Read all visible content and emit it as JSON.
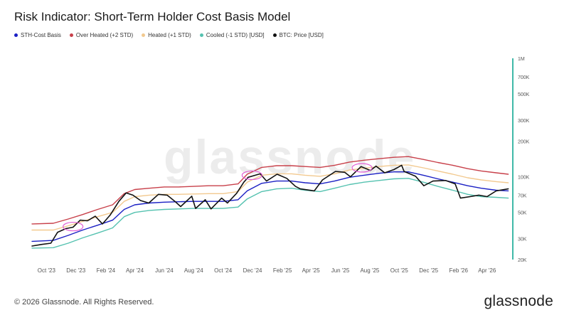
{
  "header": {
    "title": "Risk Indicator: Short-Term Holder Cost Basis Model"
  },
  "legend": [
    {
      "label": "STH-Cost Basis",
      "color": "#1a1fc4"
    },
    {
      "label": "Over Heated (+2 STD)",
      "color": "#c8404a"
    },
    {
      "label": "Heated (+1 STD)",
      "color": "#f2c98f"
    },
    {
      "label": "Cooled (-1 STD) [USD]",
      "color": "#55c2b0"
    },
    {
      "label": "BTC: Price [USD]",
      "color": "#111111"
    }
  ],
  "watermark": "glassnode",
  "footer": {
    "copyright": "© 2026 Glassnode. All Rights Reserved.",
    "brand": "glassnode"
  },
  "chart_data": {
    "type": "line",
    "y_scale": "log",
    "ylim": [
      20000,
      1000000
    ],
    "y_ticks": [
      {
        "value": 20000,
        "label": "20K"
      },
      {
        "value": 30000,
        "label": "30K"
      },
      {
        "value": 50000,
        "label": "50K"
      },
      {
        "value": 70000,
        "label": "70K"
      },
      {
        "value": 100000,
        "label": "100K"
      },
      {
        "value": 200000,
        "label": "200K"
      },
      {
        "value": 300000,
        "label": "300K"
      },
      {
        "value": 500000,
        "label": "500K"
      },
      {
        "value": 700000,
        "label": "700K"
      },
      {
        "value": 1000000,
        "label": "1M"
      }
    ],
    "xlim": [
      "2023-09-01",
      "2026-05-20"
    ],
    "x_ticks": [
      {
        "date": "2023-10-01",
        "label": "Oct '23"
      },
      {
        "date": "2023-12-01",
        "label": "Dec '23"
      },
      {
        "date": "2024-02-01",
        "label": "Feb '24"
      },
      {
        "date": "2024-04-01",
        "label": "Apr '24"
      },
      {
        "date": "2024-06-01",
        "label": "Jun '24"
      },
      {
        "date": "2024-08-01",
        "label": "Aug '24"
      },
      {
        "date": "2024-10-01",
        "label": "Oct '24"
      },
      {
        "date": "2024-12-01",
        "label": "Dec '24"
      },
      {
        "date": "2025-02-01",
        "label": "Feb '25"
      },
      {
        "date": "2025-04-01",
        "label": "Apr '25"
      },
      {
        "date": "2025-06-01",
        "label": "Jun '25"
      },
      {
        "date": "2025-08-01",
        "label": "Aug '25"
      },
      {
        "date": "2025-10-01",
        "label": "Oct '25"
      },
      {
        "date": "2025-12-01",
        "label": "Dec '25"
      },
      {
        "date": "2026-02-01",
        "label": "Feb '26"
      },
      {
        "date": "2026-04-01",
        "label": "Apr '26"
      }
    ],
    "series": [
      {
        "name": "Over Heated (+2 STD)",
        "color": "#c8404a",
        "points": [
          [
            "2023-09-01",
            40000
          ],
          [
            "2023-10-15",
            40500
          ],
          [
            "2023-11-15",
            44000
          ],
          [
            "2023-12-15",
            48000
          ],
          [
            "2024-01-15",
            53000
          ],
          [
            "2024-02-15",
            58000
          ],
          [
            "2024-03-10",
            72000
          ],
          [
            "2024-04-01",
            78000
          ],
          [
            "2024-05-01",
            80000
          ],
          [
            "2024-06-01",
            82000
          ],
          [
            "2024-07-01",
            82000
          ],
          [
            "2024-08-01",
            83000
          ],
          [
            "2024-09-01",
            84000
          ],
          [
            "2024-10-01",
            84000
          ],
          [
            "2024-11-01",
            87000
          ],
          [
            "2024-11-20",
            105000
          ],
          [
            "2024-12-20",
            120000
          ],
          [
            "2025-01-20",
            124000
          ],
          [
            "2025-02-20",
            124000
          ],
          [
            "2025-03-20",
            122000
          ],
          [
            "2025-04-20",
            120000
          ],
          [
            "2025-05-20",
            125000
          ],
          [
            "2025-06-20",
            133000
          ],
          [
            "2025-07-20",
            138000
          ],
          [
            "2025-08-20",
            142000
          ],
          [
            "2025-09-20",
            146000
          ],
          [
            "2025-10-20",
            148000
          ],
          [
            "2025-11-20",
            140000
          ],
          [
            "2025-12-20",
            132000
          ],
          [
            "2026-01-20",
            125000
          ],
          [
            "2026-02-20",
            117000
          ],
          [
            "2026-03-20",
            112000
          ],
          [
            "2026-04-20",
            108000
          ],
          [
            "2026-05-15",
            105000
          ]
        ]
      },
      {
        "name": "Heated (+1 STD)",
        "color": "#f2c98f",
        "points": [
          [
            "2023-09-01",
            35500
          ],
          [
            "2023-10-15",
            35500
          ],
          [
            "2023-11-15",
            38500
          ],
          [
            "2023-12-15",
            42000
          ],
          [
            "2024-01-15",
            46000
          ],
          [
            "2024-02-15",
            50000
          ],
          [
            "2024-03-10",
            62000
          ],
          [
            "2024-04-01",
            68000
          ],
          [
            "2024-05-01",
            70000
          ],
          [
            "2024-06-01",
            71000
          ],
          [
            "2024-07-01",
            71000
          ],
          [
            "2024-08-01",
            71500
          ],
          [
            "2024-09-01",
            72000
          ],
          [
            "2024-10-01",
            72000
          ],
          [
            "2024-11-01",
            75000
          ],
          [
            "2024-11-20",
            90000
          ],
          [
            "2024-12-20",
            103000
          ],
          [
            "2025-01-20",
            106000
          ],
          [
            "2025-02-20",
            106000
          ],
          [
            "2025-03-20",
            103000
          ],
          [
            "2025-04-20",
            101000
          ],
          [
            "2025-05-20",
            106000
          ],
          [
            "2025-06-20",
            114000
          ],
          [
            "2025-07-20",
            118000
          ],
          [
            "2025-08-20",
            122000
          ],
          [
            "2025-09-20",
            125000
          ],
          [
            "2025-10-20",
            126000
          ],
          [
            "2025-11-20",
            119000
          ],
          [
            "2025-12-20",
            112000
          ],
          [
            "2026-01-20",
            105000
          ],
          [
            "2026-02-20",
            98000
          ],
          [
            "2026-03-20",
            94000
          ],
          [
            "2026-04-20",
            91000
          ],
          [
            "2026-05-15",
            89000
          ]
        ]
      },
      {
        "name": "STH-Cost Basis",
        "color": "#1a1fc4",
        "points": [
          [
            "2023-09-01",
            28500
          ],
          [
            "2023-10-15",
            29000
          ],
          [
            "2023-11-15",
            32000
          ],
          [
            "2023-12-15",
            35500
          ],
          [
            "2024-01-15",
            39000
          ],
          [
            "2024-02-15",
            43000
          ],
          [
            "2024-03-10",
            53000
          ],
          [
            "2024-04-01",
            58000
          ],
          [
            "2024-05-01",
            60000
          ],
          [
            "2024-06-01",
            61000
          ],
          [
            "2024-07-01",
            61500
          ],
          [
            "2024-08-01",
            62000
          ],
          [
            "2024-09-01",
            62000
          ],
          [
            "2024-10-01",
            62000
          ],
          [
            "2024-11-01",
            64000
          ],
          [
            "2024-11-20",
            76000
          ],
          [
            "2024-12-20",
            88000
          ],
          [
            "2025-01-20",
            92000
          ],
          [
            "2025-02-20",
            92000
          ],
          [
            "2025-03-20",
            89000
          ],
          [
            "2025-04-20",
            87000
          ],
          [
            "2025-05-20",
            92000
          ],
          [
            "2025-06-20",
            99000
          ],
          [
            "2025-07-20",
            103000
          ],
          [
            "2025-08-20",
            107000
          ],
          [
            "2025-09-20",
            110000
          ],
          [
            "2025-10-20",
            110000
          ],
          [
            "2025-11-20",
            103000
          ],
          [
            "2025-12-20",
            96000
          ],
          [
            "2026-01-20",
            90000
          ],
          [
            "2026-02-20",
            84000
          ],
          [
            "2026-03-20",
            80000
          ],
          [
            "2026-04-20",
            77000
          ],
          [
            "2026-05-15",
            76000
          ]
        ]
      },
      {
        "name": "Cooled (-1 STD) [USD]",
        "color": "#55c2b0",
        "points": [
          [
            "2023-09-01",
            25000
          ],
          [
            "2023-10-15",
            25200
          ],
          [
            "2023-11-15",
            27500
          ],
          [
            "2023-12-15",
            30500
          ],
          [
            "2024-01-15",
            33500
          ],
          [
            "2024-02-15",
            37000
          ],
          [
            "2024-03-10",
            46000
          ],
          [
            "2024-04-01",
            50000
          ],
          [
            "2024-05-01",
            52000
          ],
          [
            "2024-06-01",
            53000
          ],
          [
            "2024-07-01",
            53500
          ],
          [
            "2024-08-01",
            54000
          ],
          [
            "2024-09-01",
            54000
          ],
          [
            "2024-10-01",
            54000
          ],
          [
            "2024-11-01",
            55500
          ],
          [
            "2024-11-20",
            65000
          ],
          [
            "2024-12-20",
            75000
          ],
          [
            "2025-01-20",
            79000
          ],
          [
            "2025-02-20",
            80000
          ],
          [
            "2025-03-20",
            77000
          ],
          [
            "2025-04-20",
            75000
          ],
          [
            "2025-05-20",
            80000
          ],
          [
            "2025-06-20",
            86000
          ],
          [
            "2025-07-20",
            90000
          ],
          [
            "2025-08-20",
            93000
          ],
          [
            "2025-09-20",
            96000
          ],
          [
            "2025-10-20",
            97000
          ],
          [
            "2025-11-20",
            90000
          ],
          [
            "2025-12-20",
            83000
          ],
          [
            "2026-01-20",
            77000
          ],
          [
            "2026-02-20",
            71000
          ],
          [
            "2026-03-20",
            68000
          ],
          [
            "2026-04-20",
            67000
          ],
          [
            "2026-05-15",
            66000
          ]
        ]
      },
      {
        "name": "BTC: Price [USD]",
        "color": "#111111",
        "points": [
          [
            "2023-09-01",
            26000
          ],
          [
            "2023-09-20",
            26800
          ],
          [
            "2023-10-10",
            27500
          ],
          [
            "2023-10-24",
            34000
          ],
          [
            "2023-11-10",
            36500
          ],
          [
            "2023-11-25",
            37500
          ],
          [
            "2023-12-10",
            43000
          ],
          [
            "2023-12-25",
            42500
          ],
          [
            "2024-01-10",
            46500
          ],
          [
            "2024-01-25",
            40000
          ],
          [
            "2024-02-10",
            47500
          ],
          [
            "2024-02-28",
            62000
          ],
          [
            "2024-03-14",
            73000
          ],
          [
            "2024-03-28",
            70000
          ],
          [
            "2024-04-13",
            63000
          ],
          [
            "2024-04-30",
            60000
          ],
          [
            "2024-05-20",
            71000
          ],
          [
            "2024-06-07",
            70000
          ],
          [
            "2024-06-25",
            61000
          ],
          [
            "2024-07-05",
            56000
          ],
          [
            "2024-07-28",
            68500
          ],
          [
            "2024-08-05",
            54000
          ],
          [
            "2024-08-25",
            64000
          ],
          [
            "2024-09-06",
            53500
          ],
          [
            "2024-09-28",
            66000
          ],
          [
            "2024-10-10",
            60000
          ],
          [
            "2024-10-29",
            72500
          ],
          [
            "2024-11-13",
            90000
          ],
          [
            "2024-11-22",
            99000
          ],
          [
            "2024-12-17",
            106000
          ],
          [
            "2024-12-30",
            92000
          ],
          [
            "2025-01-21",
            105000
          ],
          [
            "2025-02-10",
            97000
          ],
          [
            "2025-02-28",
            83000
          ],
          [
            "2025-03-10",
            79000
          ],
          [
            "2025-04-08",
            76000
          ],
          [
            "2025-04-25",
            94000
          ],
          [
            "2025-05-22",
            111000
          ],
          [
            "2025-06-10",
            109000
          ],
          [
            "2025-06-22",
            100000
          ],
          [
            "2025-07-14",
            122000
          ],
          [
            "2025-08-02",
            113000
          ],
          [
            "2025-08-14",
            123000
          ],
          [
            "2025-09-01",
            108000
          ],
          [
            "2025-09-20",
            115000
          ],
          [
            "2025-10-06",
            125000
          ],
          [
            "2025-10-11",
            111000
          ],
          [
            "2025-11-04",
            101000
          ],
          [
            "2025-11-21",
            84000
          ],
          [
            "2025-12-10",
            92000
          ],
          [
            "2026-01-05",
            93000
          ],
          [
            "2026-01-25",
            87000
          ],
          [
            "2026-02-05",
            66000
          ],
          [
            "2026-02-25",
            68000
          ],
          [
            "2026-03-15",
            70000
          ],
          [
            "2026-04-01",
            68000
          ],
          [
            "2026-04-20",
            76000
          ],
          [
            "2026-05-15",
            79000
          ]
        ]
      }
    ],
    "highlight_ellipses": [
      {
        "date": "2023-11-25",
        "value": 38000
      },
      {
        "date": "2024-11-30",
        "value": 103000
      },
      {
        "date": "2025-07-16",
        "value": 119000
      }
    ]
  }
}
